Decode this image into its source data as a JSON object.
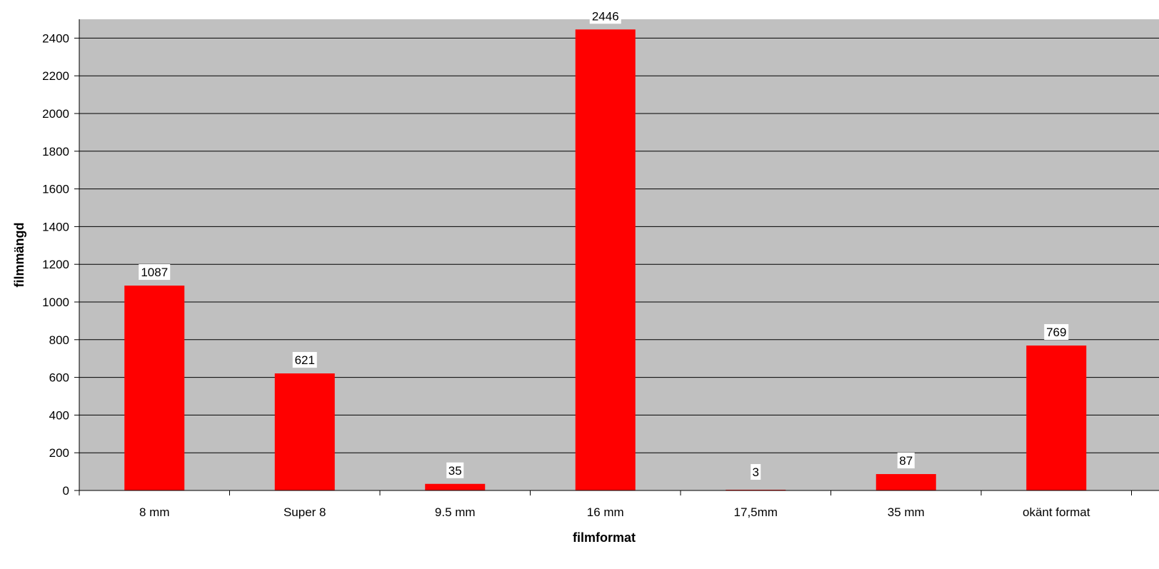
{
  "chart_data": {
    "type": "bar",
    "title": "",
    "xlabel": "filmformat",
    "ylabel": "filmmängd",
    "categories": [
      "8 mm",
      "Super 8",
      "9.5 mm",
      "16 mm",
      "17,5mm",
      "35 mm",
      "okänt format"
    ],
    "values": [
      1087,
      621,
      35,
      2446,
      3,
      87,
      769
    ],
    "data_labels": [
      "1087",
      "621",
      "35",
      "2446",
      "3",
      "87",
      "769"
    ],
    "ylim": [
      0,
      2500
    ],
    "yticks": [
      0,
      200,
      400,
      600,
      800,
      1000,
      1200,
      1400,
      1600,
      1800,
      2000,
      2200,
      2400
    ],
    "grid": true,
    "legend": "none",
    "colors": {
      "bar": "#ff0000",
      "plot_background": "#c0c0c0",
      "gridline": "#000000",
      "label_background": "#ffffff"
    }
  }
}
